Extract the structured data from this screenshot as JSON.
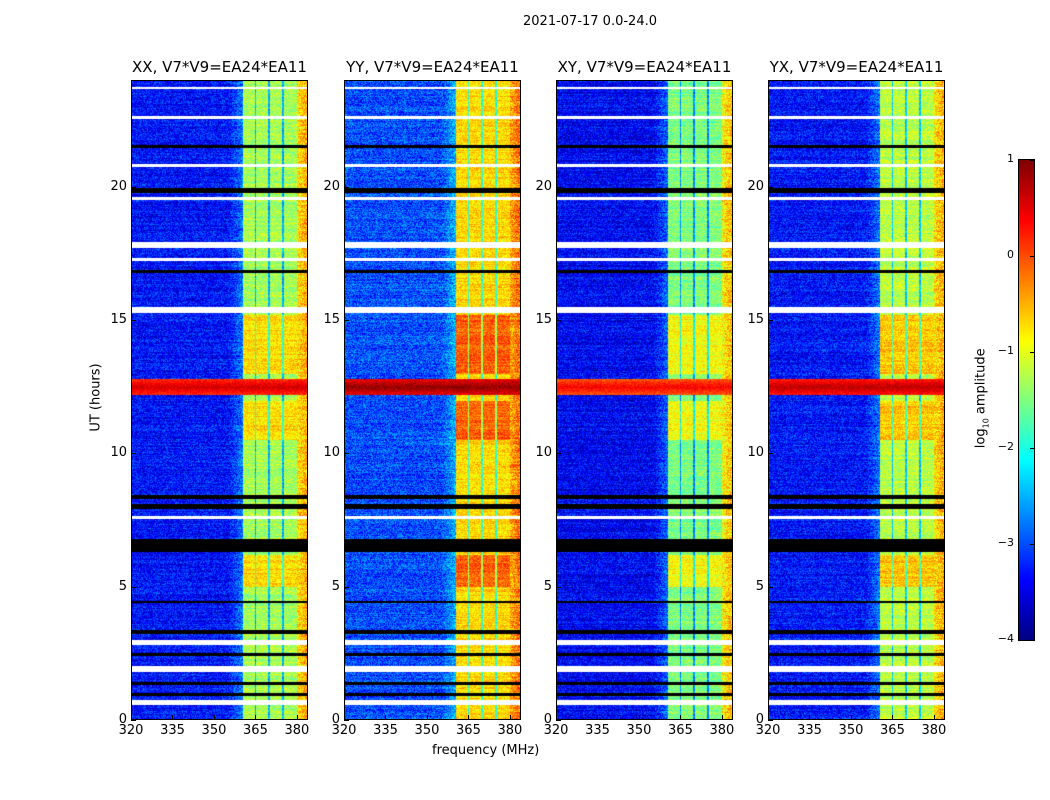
{
  "suptitle": "2021-07-17 0.0-24.0",
  "chart_data": {
    "type": "heatmap",
    "xlabel": "frequency (MHz)",
    "ylabel": "UT (hours)",
    "xlim": [
      320,
      384
    ],
    "ylim": [
      0,
      24
    ],
    "xticks": [
      "320",
      "335",
      "350",
      "365",
      "380"
    ],
    "yticks": [
      "0",
      "5",
      "10",
      "15",
      "20"
    ],
    "panels": [
      {
        "title": "XX, V7*V9=EA24*EA11",
        "baseline_log10": -3.3,
        "band_log10": -1.3,
        "rfi_log10": 0.6
      },
      {
        "title": "YY, V7*V9=EA24*EA11",
        "baseline_log10": -3.0,
        "band_log10": -0.7,
        "rfi_log10": 0.9
      },
      {
        "title": "XY, V7*V9=EA24*EA11",
        "baseline_log10": -3.4,
        "band_log10": -1.5,
        "rfi_log10": 0.4
      },
      {
        "title": "YX, V7*V9=EA24*EA11",
        "baseline_log10": -3.3,
        "band_log10": -1.2,
        "rfi_log10": 0.7
      }
    ],
    "band_mhz": [
      360.5,
      380
    ],
    "band_gaps_mhz": [
      365,
      370,
      375
    ],
    "rfi_hours": [
      12.2,
      12.8
    ],
    "flagged_hours": [
      [
        0.55,
        0.75
      ],
      [
        1.8,
        2.0
      ],
      [
        2.8,
        3.0
      ],
      [
        7.55,
        7.65
      ],
      [
        15.3,
        15.5
      ],
      [
        17.25,
        17.35
      ],
      [
        17.75,
        17.95
      ],
      [
        19.55,
        19.65
      ],
      [
        20.8,
        20.9
      ],
      [
        22.6,
        22.7
      ],
      [
        23.7,
        23.8
      ]
    ],
    "dark_hours": [
      [
        0.9,
        1.0
      ],
      [
        1.3,
        1.4
      ],
      [
        2.4,
        2.5
      ],
      [
        3.2,
        3.35
      ],
      [
        4.4,
        4.45
      ],
      [
        6.3,
        6.8
      ],
      [
        7.9,
        8.1
      ],
      [
        8.3,
        8.45
      ],
      [
        16.8,
        16.9
      ],
      [
        19.8,
        20.0
      ],
      [
        21.5,
        21.6
      ]
    ],
    "colorbar": {
      "label": "log10 amplitude",
      "label_main": "log",
      "label_sub": "10",
      "label_rest": " amplitude",
      "range": [
        -4,
        1
      ],
      "ticks": [
        "1",
        "0",
        "−1",
        "−2",
        "−3",
        "−4"
      ],
      "colormap": "jet"
    }
  }
}
